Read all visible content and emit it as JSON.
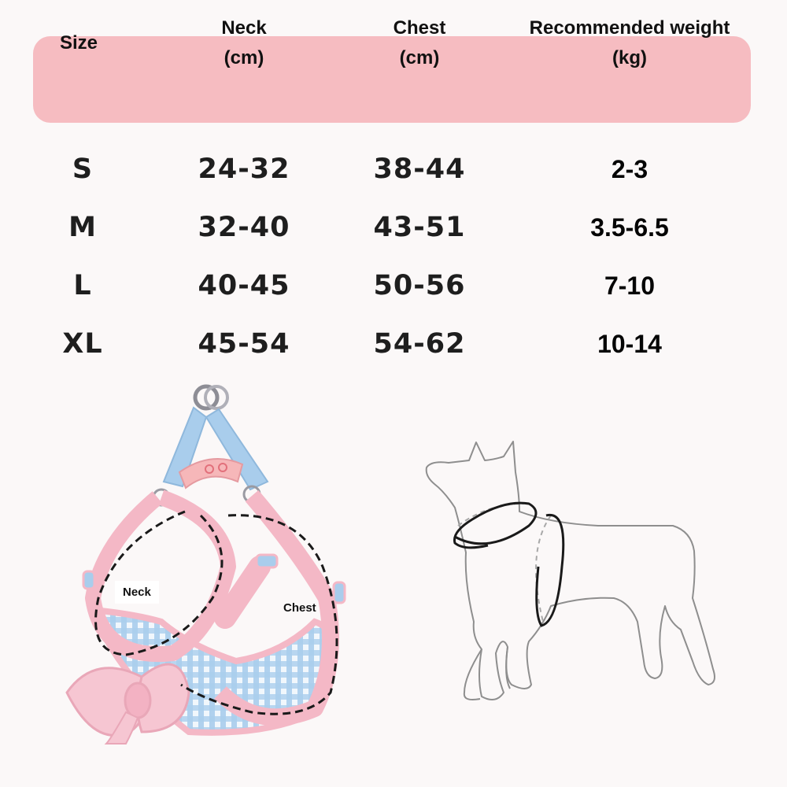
{
  "size_table": {
    "headers": [
      "Size",
      "Neck\n(cm)",
      "Chest\n(cm)",
      "Recommended weight\n(kg)"
    ],
    "rows": [
      [
        "S",
        "24-32",
        "38-44",
        "2-3"
      ],
      [
        "M",
        "32-40",
        "43-51",
        "3.5-6.5"
      ],
      [
        "L",
        "40-45",
        "50-56",
        "7-10"
      ],
      [
        "XL",
        "45-54",
        "54-62",
        "10-14"
      ]
    ]
  },
  "harness_labels": {
    "neck": "Neck",
    "chest": "Chest"
  },
  "colors": {
    "header_bg": "#f6bcc1",
    "harness_pink": "#f4b8c6",
    "harness_blue": "#a9cdec"
  }
}
